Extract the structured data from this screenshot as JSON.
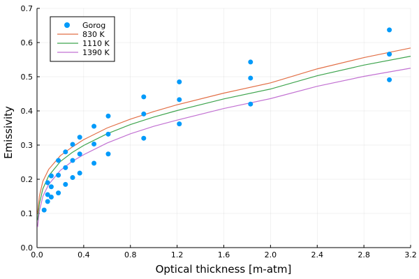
{
  "chart_data": {
    "type": "line+scatter",
    "xlabel": "Optical thickness [m-atm]",
    "ylabel": "Emissivity",
    "xlim": [
      0,
      3.2
    ],
    "ylim": [
      0,
      0.7
    ],
    "xticks": [
      0.0,
      0.4,
      0.8,
      1.2,
      1.6,
      2.0,
      2.4,
      2.8,
      3.2
    ],
    "xtick_labels": [
      "0.0",
      "0.4",
      "0.8",
      "1.2",
      "1.6",
      "2.0",
      "2.4",
      "2.8",
      "3.2"
    ],
    "yticks": [
      0.0,
      0.1,
      0.2,
      0.3,
      0.4,
      0.5,
      0.6,
      0.7
    ],
    "ytick_labels": [
      "0.0",
      "0.1",
      "0.2",
      "0.3",
      "0.4",
      "0.5",
      "0.6",
      "0.7"
    ],
    "grid": true,
    "legend_position": "top-left",
    "scatter": {
      "name": "Gorog",
      "color": "#009AFA",
      "points": [
        {
          "x": 0.061,
          "y": 0.11
        },
        {
          "x": 0.091,
          "y": 0.135
        },
        {
          "x": 0.122,
          "y": 0.148
        },
        {
          "x": 0.183,
          "y": 0.16
        },
        {
          "x": 0.244,
          "y": 0.185
        },
        {
          "x": 0.305,
          "y": 0.205
        },
        {
          "x": 0.366,
          "y": 0.218
        },
        {
          "x": 0.488,
          "y": 0.247
        },
        {
          "x": 0.61,
          "y": 0.274
        },
        {
          "x": 0.914,
          "y": 0.32
        },
        {
          "x": 1.219,
          "y": 0.362
        },
        {
          "x": 1.829,
          "y": 0.42
        },
        {
          "x": 3.018,
          "y": 0.491
        },
        {
          "x": 0.091,
          "y": 0.155
        },
        {
          "x": 0.122,
          "y": 0.178
        },
        {
          "x": 0.183,
          "y": 0.212
        },
        {
          "x": 0.244,
          "y": 0.234
        },
        {
          "x": 0.305,
          "y": 0.255
        },
        {
          "x": 0.366,
          "y": 0.274
        },
        {
          "x": 0.488,
          "y": 0.303
        },
        {
          "x": 0.61,
          "y": 0.332
        },
        {
          "x": 0.914,
          "y": 0.391
        },
        {
          "x": 1.219,
          "y": 0.433
        },
        {
          "x": 1.829,
          "y": 0.496
        },
        {
          "x": 3.018,
          "y": 0.566
        },
        {
          "x": 0.091,
          "y": 0.19
        },
        {
          "x": 0.122,
          "y": 0.21
        },
        {
          "x": 0.183,
          "y": 0.255
        },
        {
          "x": 0.244,
          "y": 0.28
        },
        {
          "x": 0.305,
          "y": 0.302
        },
        {
          "x": 0.366,
          "y": 0.323
        },
        {
          "x": 0.488,
          "y": 0.355
        },
        {
          "x": 0.61,
          "y": 0.385
        },
        {
          "x": 0.914,
          "y": 0.441
        },
        {
          "x": 1.219,
          "y": 0.485
        },
        {
          "x": 1.829,
          "y": 0.543
        },
        {
          "x": 3.018,
          "y": 0.637
        }
      ]
    },
    "series": [
      {
        "name": " 830 K",
        "color": "#E26F46",
        "x": [
          0.005,
          0.02,
          0.05,
          0.1,
          0.2,
          0.3,
          0.4,
          0.6,
          0.8,
          1.0,
          1.2,
          1.6,
          2.0,
          2.4,
          2.8,
          3.2
        ],
        "values": [
          0.1,
          0.15,
          0.194,
          0.229,
          0.269,
          0.294,
          0.316,
          0.35,
          0.376,
          0.398,
          0.418,
          0.452,
          0.482,
          0.523,
          0.556,
          0.584
        ]
      },
      {
        "name": "1110 K",
        "color": "#3DA44D",
        "x": [
          0.005,
          0.02,
          0.05,
          0.1,
          0.2,
          0.3,
          0.4,
          0.6,
          0.8,
          1.0,
          1.2,
          1.6,
          2.0,
          2.4,
          2.8,
          3.2
        ],
        "values": [
          0.08,
          0.128,
          0.172,
          0.21,
          0.252,
          0.278,
          0.299,
          0.333,
          0.36,
          0.382,
          0.401,
          0.435,
          0.464,
          0.503,
          0.534,
          0.56
        ]
      },
      {
        "name": "1390 K",
        "color": "#C271D2",
        "x": [
          0.005,
          0.02,
          0.05,
          0.1,
          0.2,
          0.3,
          0.4,
          0.6,
          0.8,
          1.0,
          1.2,
          1.6,
          2.0,
          2.4,
          2.8,
          3.2
        ],
        "values": [
          0.06,
          0.107,
          0.15,
          0.185,
          0.226,
          0.252,
          0.272,
          0.306,
          0.333,
          0.355,
          0.373,
          0.407,
          0.436,
          0.472,
          0.501,
          0.525
        ]
      }
    ]
  }
}
